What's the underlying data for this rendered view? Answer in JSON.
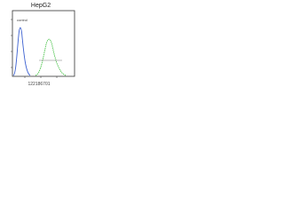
{
  "header": {
    "title": "HepG2"
  },
  "plot": {
    "label": "control"
  },
  "footer": {
    "id": "122186701"
  }
}
